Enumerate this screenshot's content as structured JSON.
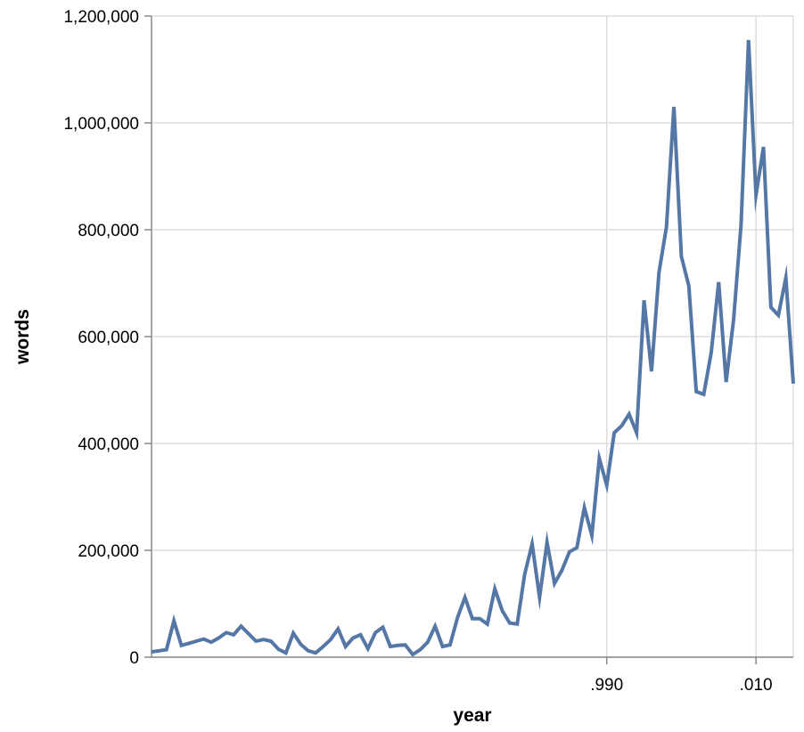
{
  "chart_data": {
    "type": "line",
    "title": "",
    "xlabel": "year",
    "ylabel": "words",
    "xlim": [
      1929,
      2015
    ],
    "ylim": [
      0,
      1200000
    ],
    "grid": true,
    "x_ticks": [
      1990,
      2010
    ],
    "x_tick_labels": [
      ".990",
      ".010"
    ],
    "y_ticks": [
      0,
      200000,
      400000,
      600000,
      800000,
      1000000,
      1200000
    ],
    "y_tick_labels": [
      "0",
      "200,000",
      "400,000",
      "600,000",
      "800,000",
      "1,000,000",
      "1,200,000"
    ],
    "series": [
      {
        "color": "#5577a6",
        "x": [
          1929,
          1930,
          1931,
          1932,
          1933,
          1934,
          1935,
          1936,
          1937,
          1938,
          1939,
          1940,
          1941,
          1942,
          1943,
          1944,
          1945,
          1946,
          1947,
          1948,
          1949,
          1950,
          1951,
          1952,
          1953,
          1954,
          1955,
          1956,
          1957,
          1958,
          1959,
          1960,
          1961,
          1962,
          1963,
          1964,
          1965,
          1966,
          1967,
          1968,
          1969,
          1970,
          1971,
          1972,
          1973,
          1974,
          1975,
          1976,
          1977,
          1978,
          1979,
          1980,
          1981,
          1982,
          1983,
          1984,
          1985,
          1986,
          1987,
          1988,
          1989,
          1990,
          1991,
          1992,
          1993,
          1994,
          1995,
          1996,
          1997,
          1998,
          1999,
          2000,
          2001,
          2002,
          2003,
          2004,
          2005,
          2006,
          2007,
          2008,
          2009,
          2010,
          2011,
          2012,
          2013,
          2014,
          2015
        ],
        "y": [
          10000,
          12000,
          14000,
          68000,
          22000,
          26000,
          30000,
          34000,
          28000,
          36000,
          46000,
          42000,
          58000,
          44000,
          30000,
          33000,
          30000,
          15000,
          8000,
          45000,
          24000,
          12000,
          8000,
          20000,
          33000,
          53000,
          20000,
          36000,
          42000,
          16000,
          46000,
          56000,
          20000,
          22000,
          23000,
          5000,
          14000,
          28000,
          58000,
          20000,
          23000,
          74000,
          112000,
          72000,
          72000,
          62000,
          128000,
          87000,
          64000,
          62000,
          155000,
          212000,
          112000,
          215000,
          138000,
          163000,
          197000,
          205000,
          280000,
          228000,
          372000,
          322000,
          420000,
          433000,
          455000,
          420000,
          668000,
          535000,
          720000,
          805000,
          1030000,
          750000,
          695000,
          497000,
          492000,
          570000,
          702000,
          515000,
          632000,
          810000,
          1155000,
          865000,
          955000,
          655000,
          640000,
          710000,
          512000
        ]
      }
    ]
  }
}
